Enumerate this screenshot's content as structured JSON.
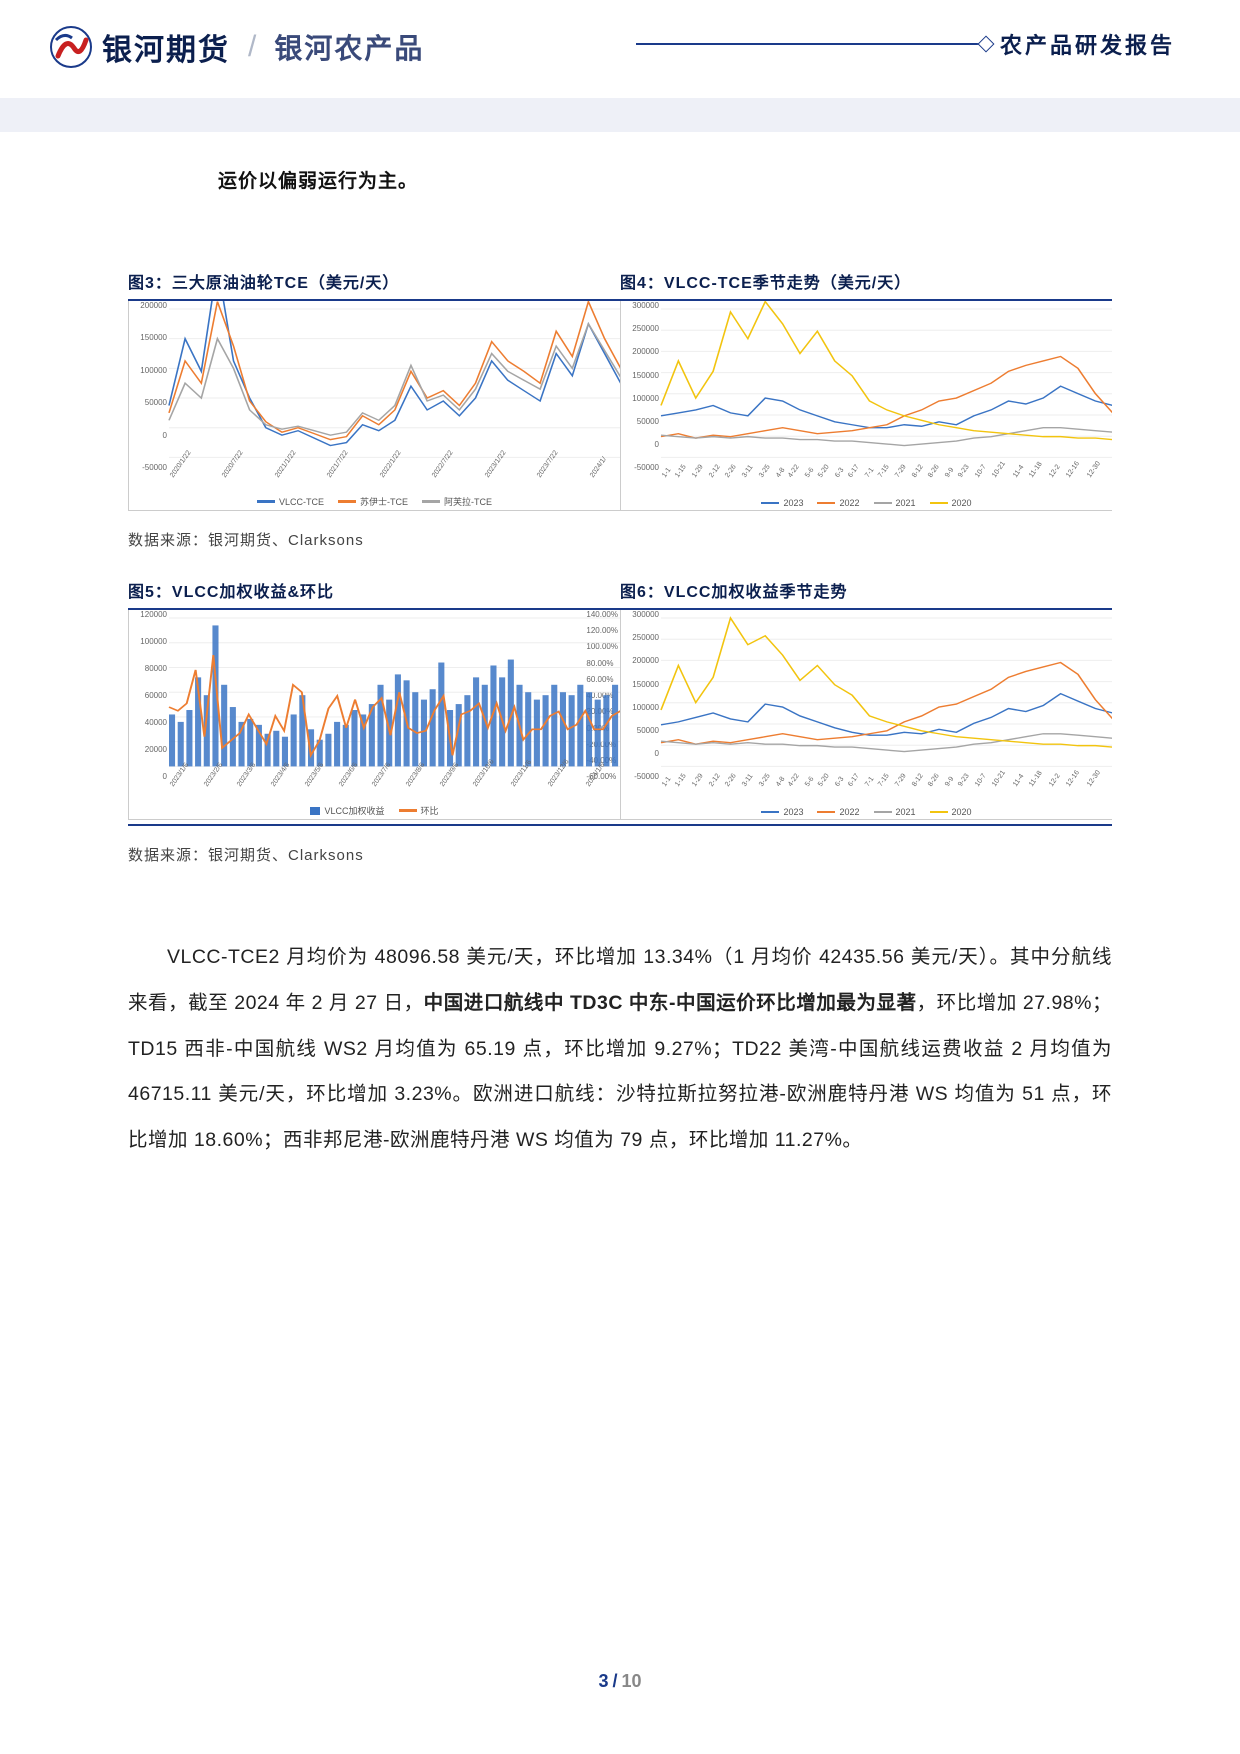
{
  "header": {
    "brand_main": "银河期货",
    "brand_sub": "银河农产品",
    "label_right": "农产品研发报告"
  },
  "intro_text": "运价以偏弱运行为主。",
  "charts": {
    "c3": {
      "title": "图3：三大原油油轮TCE（美元/天）",
      "type": "line",
      "yticks": [
        "200000",
        "150000",
        "100000",
        "50000",
        "0",
        "-50000"
      ],
      "xticks": [
        "2020/1/22",
        "2020/7/22",
        "2021/1/22",
        "2021/7/22",
        "2022/1/22",
        "2022/7/22",
        "2023/1/22",
        "2023/7/22",
        "2024/1/"
      ],
      "series": [
        {
          "name": "VLCC-TCE",
          "color": "#3a74c4",
          "data": [
            25,
            70,
            48,
            120,
            55,
            30,
            10,
            5,
            8,
            3,
            -2,
            0,
            12,
            8,
            15,
            38,
            22,
            28,
            18,
            30,
            55,
            42,
            35,
            28,
            60,
            45,
            80,
            60,
            40
          ]
        },
        {
          "name": "苏伊士-TCE",
          "color": "#ed7d31",
          "data": [
            20,
            55,
            40,
            95,
            65,
            28,
            14,
            7,
            10,
            6,
            2,
            4,
            18,
            12,
            22,
            48,
            30,
            35,
            25,
            40,
            68,
            55,
            48,
            40,
            75,
            58,
            95,
            70,
            50
          ]
        },
        {
          "name": "阿芙拉-TCE",
          "color": "#a5a5a5",
          "data": [
            15,
            40,
            30,
            70,
            50,
            22,
            12,
            9,
            11,
            8,
            5,
            7,
            20,
            15,
            25,
            52,
            28,
            32,
            22,
            36,
            60,
            48,
            42,
            36,
            65,
            50,
            80,
            62,
            44
          ]
        }
      ]
    },
    "c4": {
      "title": "图4：VLCC-TCE季节走势（美元/天）",
      "type": "line",
      "yticks": [
        "300000",
        "250000",
        "200000",
        "150000",
        "100000",
        "50000",
        "0",
        "-50000"
      ],
      "xticks": [
        "1-1",
        "1-15",
        "1-29",
        "2-12",
        "2-26",
        "3-11",
        "3-25",
        "4-8",
        "4-22",
        "5-6",
        "5-20",
        "6-3",
        "6-17",
        "7-1",
        "7-15",
        "7-29",
        "8-12",
        "8-26",
        "9-9",
        "9-23",
        "10-7",
        "10-21",
        "11-4",
        "11-18",
        "12-2",
        "12-16",
        "12-30"
      ],
      "series": [
        {
          "name": "2023",
          "color": "#3a74c4",
          "data": [
            18,
            20,
            22,
            25,
            20,
            18,
            30,
            28,
            22,
            18,
            14,
            12,
            10,
            10,
            12,
            11,
            14,
            12,
            18,
            22,
            28,
            26,
            30,
            38,
            33,
            28,
            25
          ]
        },
        {
          "name": "2022",
          "color": "#ed7d31",
          "data": [
            4,
            6,
            3,
            5,
            4,
            6,
            8,
            10,
            8,
            6,
            7,
            8,
            10,
            12,
            18,
            22,
            28,
            30,
            35,
            40,
            48,
            52,
            55,
            58,
            50,
            33,
            20
          ]
        },
        {
          "name": "2021",
          "color": "#a5a5a5",
          "data": [
            5,
            4,
            3,
            4,
            3,
            4,
            3,
            3,
            2,
            2,
            1,
            1,
            0,
            -1,
            -2,
            -1,
            0,
            1,
            3,
            4,
            6,
            8,
            10,
            10,
            9,
            8,
            7
          ]
        },
        {
          "name": "2020",
          "color": "#f2c40f",
          "data": [
            25,
            55,
            30,
            48,
            88,
            70,
            95,
            80,
            60,
            75,
            55,
            45,
            28,
            22,
            18,
            15,
            12,
            10,
            8,
            7,
            6,
            5,
            4,
            4,
            3,
            3,
            2
          ]
        }
      ]
    },
    "c5": {
      "title": "图5：VLCC加权收益&环比",
      "type": "combo",
      "yticks": [
        "120000",
        "100000",
        "80000",
        "60000",
        "40000",
        "20000",
        "0"
      ],
      "yticks2": [
        "140.00%",
        "120.00%",
        "100.00%",
        "80.00%",
        "60.00%",
        "40.00%",
        "20.00%",
        "0.00%",
        "-20.00%",
        "-40.00%",
        "-60.00%"
      ],
      "xticks": [
        "2023/1/6",
        "2023/2/6",
        "2023/3/6",
        "2023/4/6",
        "2023/5/6",
        "2023/6/6",
        "2023/7/6",
        "2023/8/6",
        "2023/9/6",
        "2023/10/6",
        "2023/11/6",
        "2023/12/6",
        "2024/1/6"
      ],
      "bar": {
        "name": "VLCC加权收益",
        "color": "#3a74c4",
        "data": [
          35,
          30,
          38,
          60,
          48,
          95,
          55,
          40,
          30,
          32,
          28,
          22,
          24,
          20,
          35,
          48,
          25,
          18,
          22,
          30,
          28,
          38,
          35,
          42,
          55,
          45,
          62,
          58,
          50,
          45,
          52,
          70,
          38,
          42,
          48,
          60,
          55,
          68,
          60,
          72,
          55,
          50,
          45,
          48,
          55,
          50,
          48,
          55,
          50,
          45,
          48,
          55
        ]
      },
      "line": {
        "name": "环比",
        "color": "#ed7d31",
        "data": [
          20,
          15,
          25,
          70,
          -20,
          90,
          -35,
          -25,
          -15,
          10,
          -10,
          -30,
          8,
          -12,
          50,
          40,
          -45,
          -25,
          18,
          35,
          -8,
          30,
          -8,
          20,
          32,
          -18,
          40,
          -8,
          -15,
          -12,
          16,
          35,
          -45,
          10,
          15,
          25,
          -8,
          25,
          -12,
          20,
          -24,
          -10,
          -10,
          8,
          14,
          -10,
          -4,
          15,
          -10,
          -10,
          8,
          15
        ]
      }
    },
    "c6": {
      "title": "图6：VLCC加权收益季节走势",
      "type": "line",
      "yticks": [
        "300000",
        "250000",
        "200000",
        "150000",
        "100000",
        "50000",
        "0",
        "-50000"
      ],
      "xticks": [
        "1-1",
        "1-15",
        "1-29",
        "2-12",
        "2-26",
        "3-11",
        "3-25",
        "4-8",
        "4-22",
        "5-6",
        "5-20",
        "6-3",
        "6-17",
        "7-1",
        "7-15",
        "7-29",
        "8-12",
        "8-26",
        "9-9",
        "9-23",
        "10-7",
        "10-21",
        "11-4",
        "11-18",
        "12-2",
        "12-16",
        "12-30"
      ],
      "series": [
        {
          "name": "2023",
          "color": "#3a74c4",
          "data": [
            18,
            20,
            23,
            26,
            22,
            20,
            32,
            30,
            24,
            20,
            16,
            13,
            11,
            11,
            13,
            12,
            15,
            13,
            19,
            23,
            29,
            27,
            31,
            39,
            34,
            29,
            26
          ]
        },
        {
          "name": "2022",
          "color": "#ed7d31",
          "data": [
            6,
            8,
            5,
            7,
            6,
            8,
            10,
            12,
            10,
            8,
            9,
            10,
            12,
            14,
            20,
            24,
            30,
            32,
            37,
            42,
            50,
            54,
            57,
            60,
            52,
            35,
            22
          ]
        },
        {
          "name": "2021",
          "color": "#a5a5a5",
          "data": [
            7,
            6,
            5,
            6,
            5,
            6,
            5,
            5,
            4,
            4,
            3,
            3,
            2,
            1,
            0,
            1,
            2,
            3,
            5,
            6,
            8,
            10,
            12,
            12,
            11,
            10,
            9
          ]
        },
        {
          "name": "2020",
          "color": "#f2c40f",
          "data": [
            28,
            58,
            33,
            50,
            90,
            72,
            78,
            65,
            48,
            58,
            45,
            38,
            24,
            20,
            17,
            14,
            12,
            10,
            9,
            8,
            7,
            6,
            5,
            5,
            4,
            4,
            3
          ]
        }
      ]
    }
  },
  "source_label": "数据来源：银河期货、Clarksons",
  "body_paragraph": {
    "p1_a": "VLCC-TCE2 月均价为 48096.58 美元/天，环比增加 13.34%（1 月均价 42435.56 美元/天）。其中分航线来看，截至 2024 年 2 月 27 日，",
    "p1_bold": "中国进口航线中 TD3C 中东-中国运价环比增加最为显著",
    "p1_b": "，环比增加 27.98%；TD15 西非-中国航线 WS2 月均值为 65.19 点，环比增加 9.27%；TD22 美湾-中国航线运费收益 2 月均值为 46715.11 美元/天，环比增加 3.23%。欧洲进口航线：沙特拉斯拉努拉港-欧洲鹿特丹港 WS 均值为 51 点，环比增加 18.60%；西非邦尼港-欧洲鹿特丹港 WS 均值为 79 点，环比增加 11.27%。"
  },
  "pager": {
    "current": "3",
    "total": "10"
  },
  "colors": {
    "brand": "#0b1f4e",
    "rule": "#1a3a8a"
  }
}
